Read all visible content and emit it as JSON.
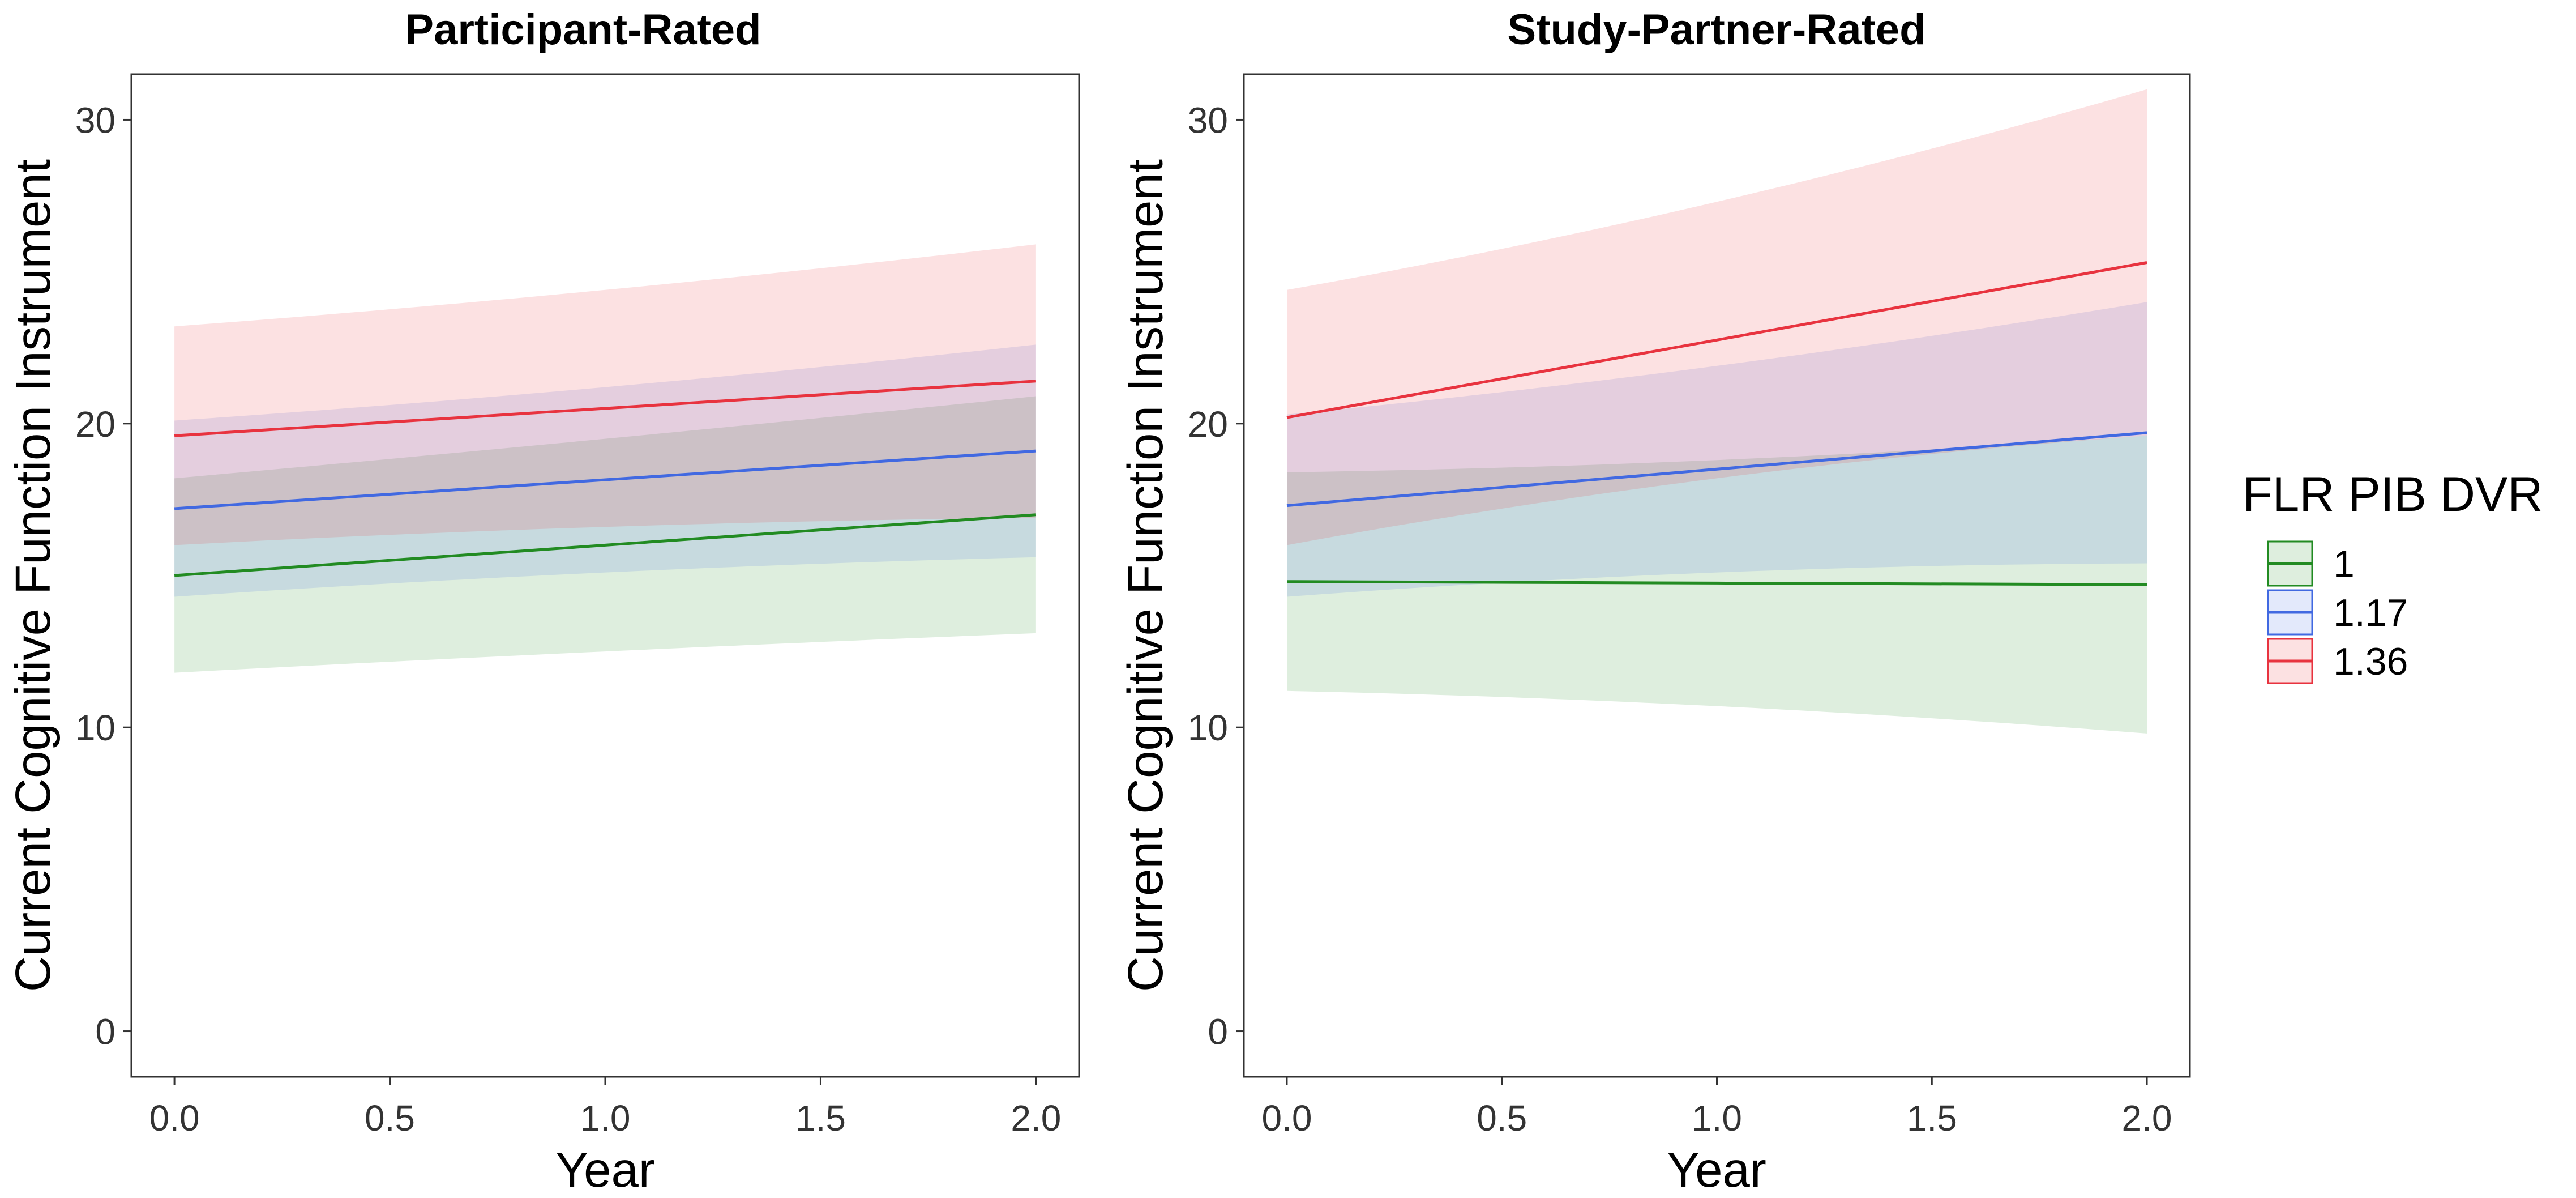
{
  "chart_data": [
    {
      "type": "line",
      "title": "Participant-Rated",
      "xlabel": "Year",
      "ylabel": "Current Cognitive Function Instrument",
      "xlim": [
        -0.1,
        2.1
      ],
      "ylim": [
        -1.5,
        31.5
      ],
      "xticks": [
        0,
        0.5,
        1,
        1.5,
        2
      ],
      "xtick_labels": [
        "0.0",
        "0.5",
        "1.0",
        "1.5",
        "2.0"
      ],
      "yticks": [
        0,
        10,
        20,
        30
      ],
      "ytick_labels": [
        "0",
        "10",
        "20",
        "30"
      ],
      "grid": false,
      "show_legend": false,
      "series": [
        {
          "name": "1",
          "color": "#228B22",
          "x": [
            0,
            1,
            2
          ],
          "y": [
            15.0,
            16.0,
            17.0
          ],
          "lower": [
            11.8,
            12.5,
            13.1
          ],
          "upper": [
            18.2,
            19.5,
            20.9
          ]
        },
        {
          "name": "1.17",
          "color": "#4169E1",
          "x": [
            0,
            1,
            2
          ],
          "y": [
            17.2,
            18.15,
            19.1
          ],
          "lower": [
            14.3,
            15.1,
            15.6
          ],
          "upper": [
            20.1,
            21.2,
            22.6
          ]
        },
        {
          "name": "1.36",
          "color": "#E8333F",
          "x": [
            0,
            1,
            2
          ],
          "y": [
            19.6,
            20.5,
            21.4
          ],
          "lower": [
            16.0,
            16.6,
            16.9
          ],
          "upper": [
            23.2,
            24.4,
            25.9
          ]
        }
      ]
    },
    {
      "type": "line",
      "title": "Study-Partner-Rated",
      "xlabel": "Year",
      "ylabel": "Current Cognitive Function Instrument",
      "xlim": [
        -0.1,
        2.1
      ],
      "ylim": [
        -1.5,
        31.5
      ],
      "xticks": [
        0,
        0.5,
        1,
        1.5,
        2
      ],
      "xtick_labels": [
        "0.0",
        "0.5",
        "1.0",
        "1.5",
        "2.0"
      ],
      "yticks": [
        0,
        10,
        20,
        30
      ],
      "ytick_labels": [
        "0",
        "10",
        "20",
        "30"
      ],
      "grid": false,
      "show_legend": true,
      "legend_title": "FLR PIB DVR",
      "legend_position": "right",
      "series": [
        {
          "name": "1",
          "color": "#228B22",
          "x": [
            0,
            1,
            2
          ],
          "y": [
            14.8,
            14.75,
            14.7
          ],
          "lower": [
            11.2,
            10.7,
            9.8
          ],
          "upper": [
            18.4,
            18.8,
            19.6
          ]
        },
        {
          "name": "1.17",
          "color": "#4169E1",
          "x": [
            0,
            1,
            2
          ],
          "y": [
            17.3,
            18.5,
            19.7
          ],
          "lower": [
            14.3,
            15.1,
            15.4
          ],
          "upper": [
            20.3,
            21.9,
            24.0
          ]
        },
        {
          "name": "1.36",
          "color": "#E8333F",
          "x": [
            0,
            1,
            2
          ],
          "y": [
            20.2,
            22.75,
            25.3
          ],
          "lower": [
            16.0,
            18.2,
            19.6
          ],
          "upper": [
            24.4,
            27.3,
            31.0
          ]
        }
      ]
    }
  ]
}
